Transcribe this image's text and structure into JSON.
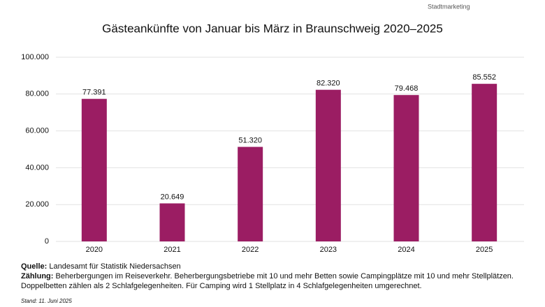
{
  "chart_data": {
    "type": "bar",
    "title": "Gästeankünfte von Januar bis März in Braunschweig 2020–2025",
    "logo": "Stadtmarketing",
    "categories": [
      "2020",
      "2021",
      "2022",
      "2023",
      "2024",
      "2025"
    ],
    "values": [
      77391,
      20649,
      51320,
      82320,
      79468,
      85552
    ],
    "value_labels": [
      "77.391",
      "20.649",
      "51.320",
      "82.320",
      "79.468",
      "85.552"
    ],
    "color": "#9b1d63",
    "ylim": [
      0,
      100000
    ],
    "yticks": [
      0,
      {
        "value": 20000,
        "label": "20.000"
      },
      {
        "value": 40000,
        "label": "40.000"
      },
      {
        "value": 60000,
        "label": "60.000"
      },
      {
        "value": 80000,
        "label": "80.000"
      },
      {
        "value": 100000,
        "label": "100.000"
      }
    ],
    "grid": true,
    "notes": {
      "source_label": "Quelle:",
      "source": "Landesamt für Statistik Niedersachsen",
      "count_label": "Zählung:",
      "count_line1": "Beherbergungen im Reiseverkehr. Beherbergungsbetriebe mit 10 und mehr Betten sowie Campingplätze mit 10 und mehr Stellplätzen.",
      "count_line2": "Doppelbetten zählen als 2 Schlafgelegenheiten. Für Camping wird 1 Stellplatz in 4 Schlafgelegenheiten umgerechnet.",
      "date": "Stand: 11. Juni 2025"
    }
  }
}
